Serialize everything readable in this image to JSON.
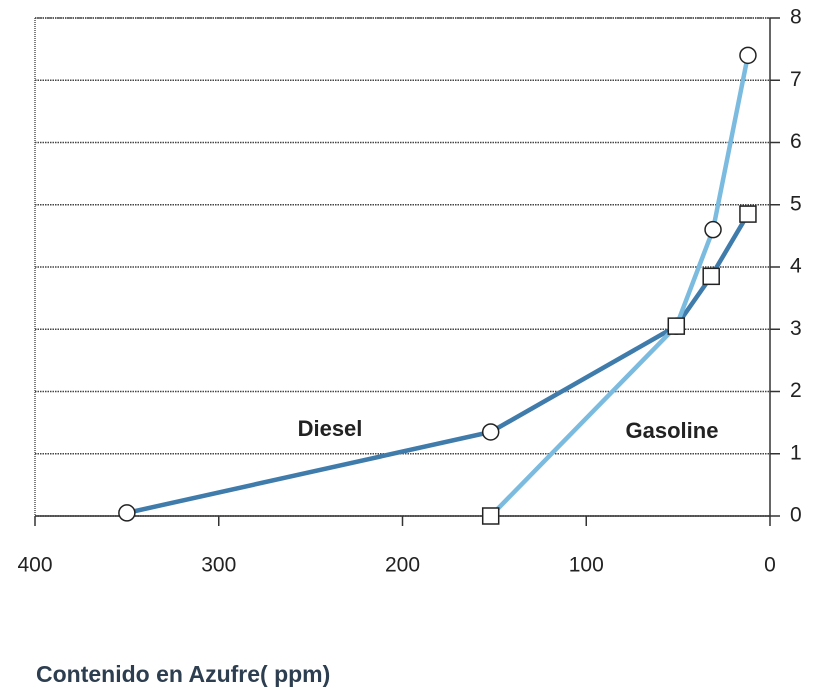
{
  "chart_data": {
    "type": "line",
    "x_label": "Contenido en Azufre( ppm)",
    "xlim": [
      400,
      0
    ],
    "xticks": [
      400,
      300,
      200,
      100,
      0
    ],
    "ylim": [
      0,
      8
    ],
    "yticks": [
      0,
      1,
      2,
      3,
      4,
      5,
      6,
      7,
      8
    ],
    "grid": true,
    "y_axis_side": "right",
    "series": [
      {
        "name": "Diesel",
        "color": "#3f7bab",
        "x": [
          350,
          152,
          51,
          32,
          12
        ],
        "values": [
          0.05,
          1.35,
          3.05,
          3.85,
          4.85
        ],
        "markers": [
          "circle",
          "circle",
          "circle",
          "square",
          "square"
        ]
      },
      {
        "name": "Gasoline",
        "color": "#7bbbe0",
        "x": [
          152,
          51,
          31,
          12
        ],
        "values": [
          0,
          3.05,
          4.6,
          7.4
        ],
        "markers": [
          "square",
          "square",
          "circle",
          "circle"
        ]
      }
    ]
  }
}
